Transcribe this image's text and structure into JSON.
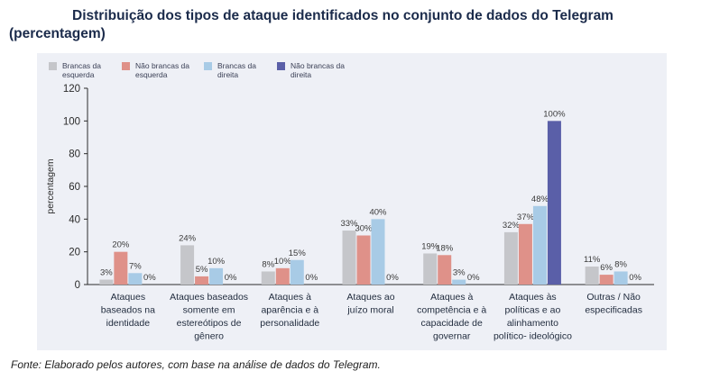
{
  "title_line1": "Distribuição dos tipos de ataque identificados no conjunto de dados do Telegram",
  "title_line2": "(percentagem)",
  "source": "Fonte: Elaborado pelos autores, com base na análise de dados do Telegram.",
  "chart_data": {
    "type": "bar",
    "ylabel": "percentagem",
    "xlabel": "",
    "ylim": [
      0,
      120
    ],
    "yticks": [
      0,
      20,
      40,
      60,
      80,
      100,
      120
    ],
    "grid": false,
    "legend_position": "top-left",
    "categories": [
      [
        "Ataques",
        "baseados na",
        "identidade"
      ],
      [
        "Ataques baseados",
        "somente em",
        "estereótipos de",
        "gênero"
      ],
      [
        "Ataques à",
        "aparência e à",
        "personalidade"
      ],
      [
        "Ataques ao",
        "juízo moral"
      ],
      [
        "Ataques à",
        "competência e à",
        "capacidade de",
        "governar"
      ],
      [
        "Ataques às",
        "políticas e ao",
        "alinhamento",
        "político- ideológico"
      ],
      [
        "Outras / Não",
        "especificadas"
      ]
    ],
    "series": [
      {
        "name": [
          "Brancas da",
          "esquerda"
        ],
        "color": "#c5c6ca",
        "values": [
          3,
          24,
          8,
          33,
          19,
          32,
          11
        ],
        "labels": [
          "3%",
          "24%",
          "8%",
          "33%",
          "19%",
          "32%",
          "11%"
        ]
      },
      {
        "name": [
          "Não brancas da",
          "esquerda"
        ],
        "color": "#df9189",
        "values": [
          20,
          5,
          10,
          30,
          18,
          37,
          6
        ],
        "labels": [
          "20%",
          "5%",
          "10%",
          "30%",
          "18%",
          "37%",
          "6%"
        ]
      },
      {
        "name": [
          "Brancas da",
          "direita"
        ],
        "color": "#a8cbe6",
        "values": [
          7,
          10,
          15,
          40,
          3,
          48,
          8
        ],
        "labels": [
          "7%",
          "10%",
          "15%",
          "40%",
          "3%",
          "48%",
          "8%"
        ]
      },
      {
        "name": [
          "Não brancas da",
          "direita"
        ],
        "color": "#5a5fa8",
        "values": [
          0,
          0,
          0,
          0,
          0,
          100,
          0
        ],
        "labels": [
          "0%",
          "0%",
          "0%",
          "0%",
          "0%",
          "100%",
          "0%"
        ]
      }
    ]
  }
}
